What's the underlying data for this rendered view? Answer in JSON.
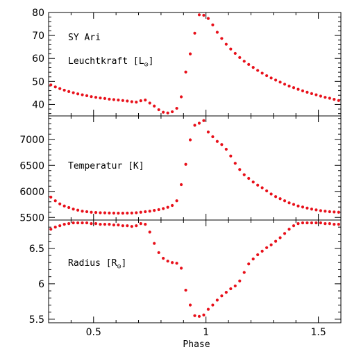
{
  "chart_data": [
    {
      "type": "scatter",
      "panel": "luminosity",
      "star_label": "SY Ari",
      "label_prefix": "Leuchtkraft [L",
      "label_sub": "⊙",
      "label_suffix": "]",
      "xlim": [
        0.3,
        1.6
      ],
      "ylim": [
        35,
        80
      ],
      "yticks_major": [
        40,
        50,
        60,
        70,
        80
      ],
      "yticks_minor_step": 2,
      "marker_color": "#e8101a",
      "x": [
        0.31,
        0.33,
        0.35,
        0.37,
        0.39,
        0.41,
        0.43,
        0.45,
        0.47,
        0.49,
        0.51,
        0.53,
        0.55,
        0.57,
        0.59,
        0.61,
        0.63,
        0.65,
        0.67,
        0.69,
        0.71,
        0.73,
        0.75,
        0.77,
        0.79,
        0.81,
        0.83,
        0.85,
        0.87,
        0.89,
        0.91,
        0.93,
        0.95,
        0.97,
        0.99,
        1.01,
        1.03,
        1.05,
        1.07,
        1.09,
        1.11,
        1.13,
        1.15,
        1.17,
        1.19,
        1.21,
        1.23,
        1.25,
        1.27,
        1.29,
        1.31,
        1.33,
        1.35,
        1.37,
        1.39,
        1.41,
        1.43,
        1.45,
        1.47,
        1.49,
        1.51,
        1.53,
        1.55,
        1.57,
        1.59
      ],
      "y": [
        48.5,
        47.6,
        46.9,
        46.2,
        45.6,
        45.1,
        44.6,
        44.2,
        43.8,
        43.4,
        43.1,
        42.8,
        42.6,
        42.3,
        42.1,
        41.9,
        41.7,
        41.5,
        41.2,
        41.0,
        41.6,
        41.9,
        40.6,
        39.3,
        37.7,
        36.6,
        36.3,
        36.8,
        38.3,
        43.3,
        54.1,
        62.0,
        71.0,
        79.0,
        78.8,
        77.4,
        74.6,
        71.4,
        68.7,
        66.2,
        64.1,
        62.2,
        60.4,
        58.8,
        57.4,
        56.1,
        54.8,
        53.6,
        52.5,
        51.5,
        50.6,
        49.7,
        48.8,
        48.0,
        47.3,
        46.6,
        45.9,
        45.3,
        44.7,
        44.2,
        43.6,
        43.1,
        42.7,
        42.2,
        41.7
      ]
    },
    {
      "type": "scatter",
      "panel": "temperature",
      "label": "Temperatur [K]",
      "xlim": [
        0.3,
        1.6
      ],
      "ylim": [
        5450,
        7450
      ],
      "yticks_major": [
        5500,
        6000,
        6500,
        7000
      ],
      "yticks_minor_step": 100,
      "marker_color": "#e8101a",
      "x": [
        0.31,
        0.33,
        0.35,
        0.37,
        0.39,
        0.41,
        0.43,
        0.45,
        0.47,
        0.49,
        0.51,
        0.53,
        0.55,
        0.57,
        0.59,
        0.61,
        0.63,
        0.65,
        0.67,
        0.69,
        0.71,
        0.73,
        0.75,
        0.77,
        0.79,
        0.81,
        0.83,
        0.85,
        0.87,
        0.89,
        0.91,
        0.93,
        0.95,
        0.97,
        0.99,
        1.01,
        1.03,
        1.05,
        1.07,
        1.09,
        1.11,
        1.13,
        1.15,
        1.17,
        1.19,
        1.21,
        1.23,
        1.25,
        1.27,
        1.29,
        1.31,
        1.33,
        1.35,
        1.37,
        1.39,
        1.41,
        1.43,
        1.45,
        1.47,
        1.49,
        1.51,
        1.53,
        1.55,
        1.57,
        1.59
      ],
      "y": [
        5890,
        5820,
        5760,
        5720,
        5690,
        5660,
        5640,
        5620,
        5610,
        5600,
        5595,
        5590,
        5588,
        5585,
        5583,
        5582,
        5582,
        5583,
        5585,
        5590,
        5600,
        5610,
        5620,
        5635,
        5650,
        5670,
        5695,
        5730,
        5820,
        6130,
        6520,
        6990,
        7270,
        7310,
        7360,
        7140,
        7050,
        6960,
        6900,
        6810,
        6680,
        6540,
        6420,
        6320,
        6250,
        6180,
        6120,
        6070,
        6010,
        5950,
        5900,
        5860,
        5820,
        5780,
        5750,
        5720,
        5700,
        5680,
        5660,
        5645,
        5630,
        5620,
        5610,
        5605,
        5600
      ]
    },
    {
      "type": "scatter",
      "panel": "radius",
      "label_prefix": "Radius [R",
      "label_sub": "⊙",
      "label_suffix": "]",
      "xlim": [
        0.3,
        1.6
      ],
      "ylim": [
        5.45,
        6.9
      ],
      "yticks_major": [
        5.5,
        6,
        6.5
      ],
      "yticks_minor_step": 0.1,
      "marker_color": "#e8101a",
      "xlabel": "Phase",
      "xticks_major": [
        0.5,
        1,
        1.5
      ],
      "xtick_labels": [
        "0.5",
        "1",
        "1.5"
      ],
      "xticks_minor_step": 0.1,
      "x": [
        0.31,
        0.33,
        0.35,
        0.37,
        0.39,
        0.41,
        0.43,
        0.45,
        0.47,
        0.49,
        0.51,
        0.53,
        0.55,
        0.57,
        0.59,
        0.61,
        0.63,
        0.65,
        0.67,
        0.69,
        0.71,
        0.73,
        0.75,
        0.77,
        0.79,
        0.81,
        0.83,
        0.85,
        0.87,
        0.89,
        0.91,
        0.93,
        0.95,
        0.97,
        0.99,
        1.01,
        1.03,
        1.05,
        1.07,
        1.09,
        1.11,
        1.13,
        1.15,
        1.17,
        1.19,
        1.21,
        1.23,
        1.25,
        1.27,
        1.29,
        1.31,
        1.33,
        1.35,
        1.37,
        1.39,
        1.41,
        1.43,
        1.45,
        1.47,
        1.49,
        1.51,
        1.53,
        1.55,
        1.57,
        1.59
      ],
      "y": [
        6.77,
        6.8,
        6.82,
        6.84,
        6.85,
        6.86,
        6.86,
        6.86,
        6.86,
        6.85,
        6.85,
        6.84,
        6.84,
        6.84,
        6.83,
        6.83,
        6.82,
        6.82,
        6.81,
        6.82,
        6.85,
        6.84,
        6.73,
        6.57,
        6.44,
        6.36,
        6.32,
        6.3,
        6.29,
        6.22,
        5.91,
        5.7,
        5.55,
        5.54,
        5.56,
        5.64,
        5.7,
        5.77,
        5.83,
        5.88,
        5.93,
        5.97,
        6.04,
        6.16,
        6.28,
        6.35,
        6.41,
        6.46,
        6.51,
        6.55,
        6.6,
        6.65,
        6.71,
        6.77,
        6.82,
        6.85,
        6.86,
        6.86,
        6.86,
        6.86,
        6.86,
        6.85,
        6.85,
        6.84,
        6.84
      ]
    }
  ]
}
